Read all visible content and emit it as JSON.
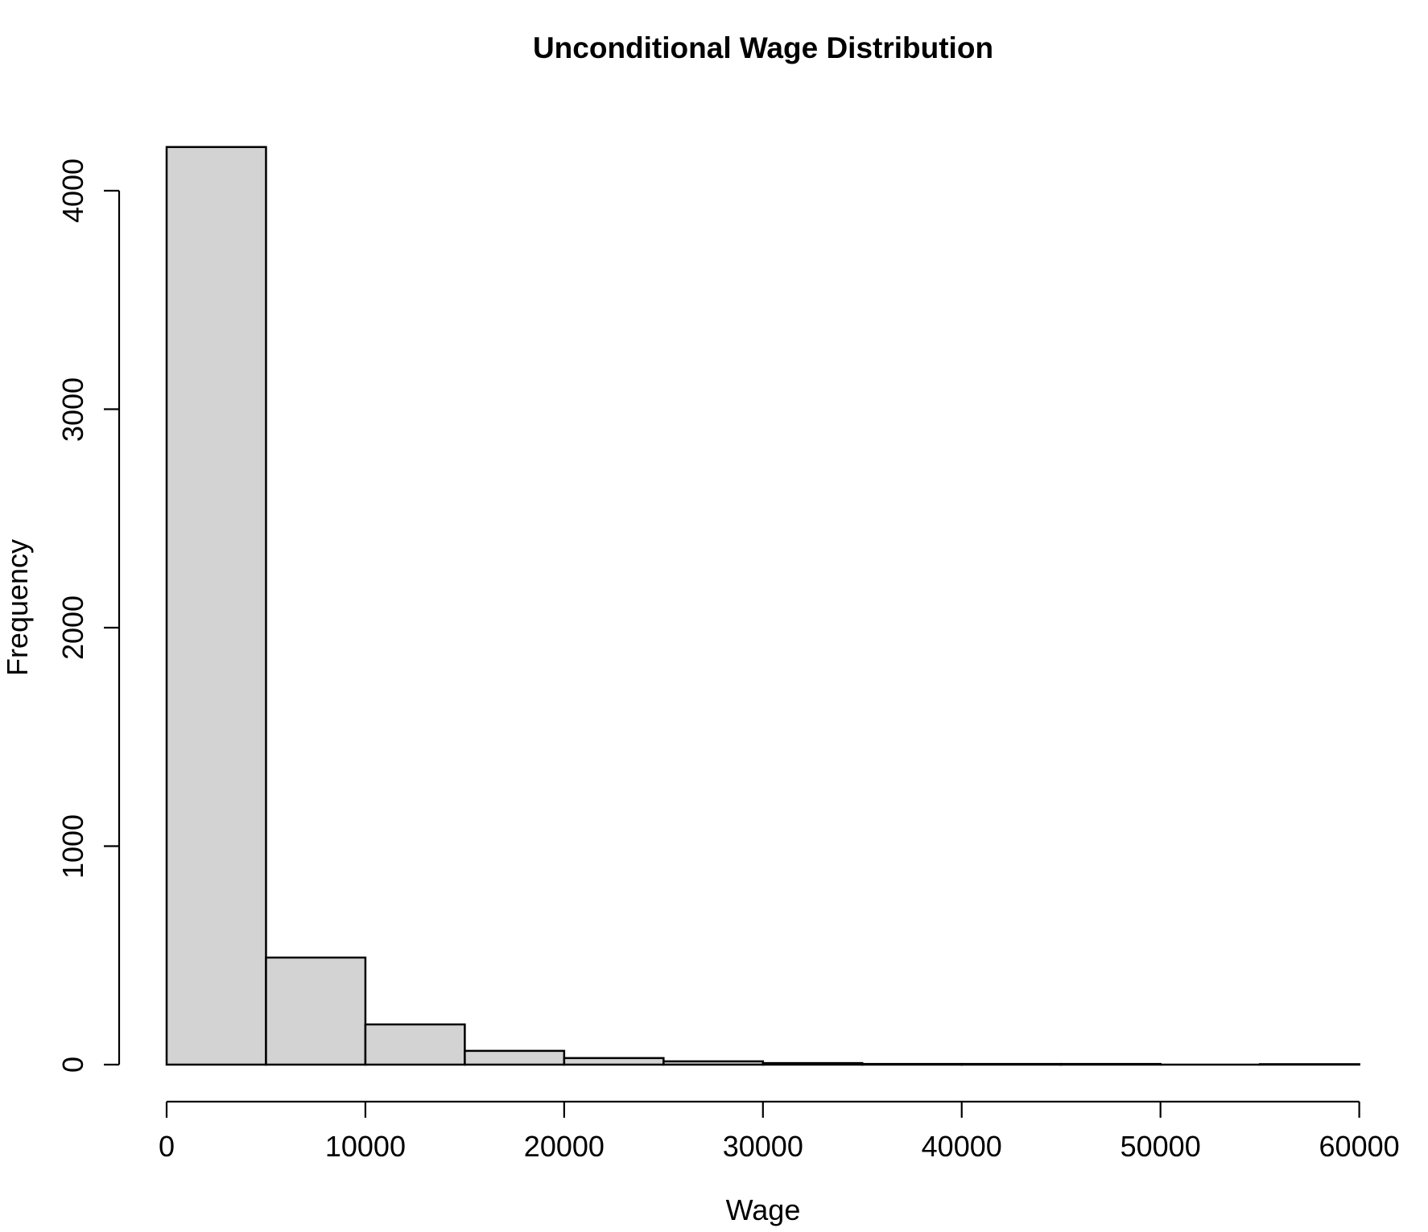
{
  "chart_data": {
    "type": "bar",
    "subtype": "histogram",
    "title": "Unconditional Wage Distribution",
    "xlabel": "Wage",
    "ylabel": "Frequency",
    "bin_width": 5000,
    "bin_edges": [
      0,
      5000,
      10000,
      15000,
      20000,
      25000,
      30000,
      35000,
      40000,
      45000,
      50000,
      55000,
      60000
    ],
    "counts": [
      4200,
      490,
      184,
      63,
      30,
      15,
      7,
      3,
      3,
      3,
      0,
      2
    ],
    "x_ticks": [
      0,
      10000,
      20000,
      30000,
      40000,
      50000,
      60000
    ],
    "y_ticks": [
      0,
      1000,
      2000,
      3000,
      4000
    ],
    "xlim": [
      0,
      60000
    ],
    "ylim": [
      0,
      4200
    ],
    "grid": false,
    "legend": null,
    "bar_fill": "#d3d3d3",
    "bar_border": "#000000",
    "axis_color": "#000000",
    "background": "#ffffff"
  }
}
